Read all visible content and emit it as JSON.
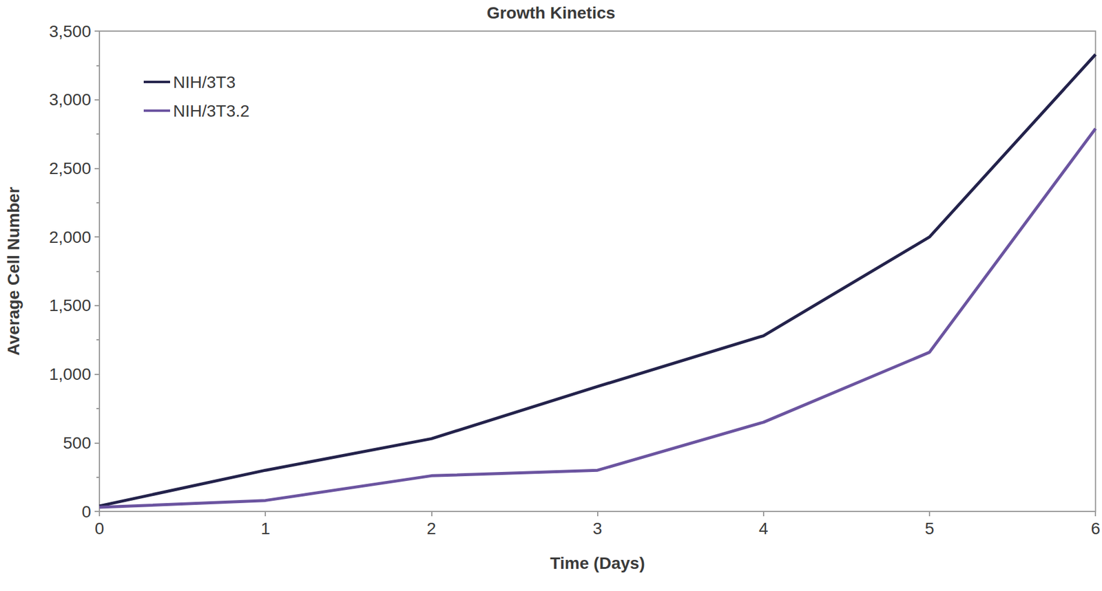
{
  "chart_data": {
    "type": "line",
    "title": "Growth Kinetics",
    "x_label": "Time (Days)",
    "y_label": "Average Cell Number",
    "x": [
      0,
      1,
      2,
      3,
      4,
      5,
      6
    ],
    "series": [
      {
        "name": "NIH/3T3",
        "color": "#23224b",
        "values": [
          40,
          300,
          530,
          910,
          1280,
          2000,
          3330
        ]
      },
      {
        "name": "NIH/3T3.2",
        "color": "#6b54a0",
        "values": [
          30,
          80,
          260,
          300,
          650,
          1160,
          2790
        ]
      }
    ],
    "xlim": [
      0,
      6
    ],
    "xticks": [
      0,
      1,
      2,
      3,
      4,
      5,
      6
    ],
    "ylim": [
      0,
      3500
    ],
    "yticks": [
      0,
      500,
      1000,
      1500,
      2000,
      2500,
      3000,
      3500
    ],
    "grid": false,
    "legend": "upper left"
  }
}
